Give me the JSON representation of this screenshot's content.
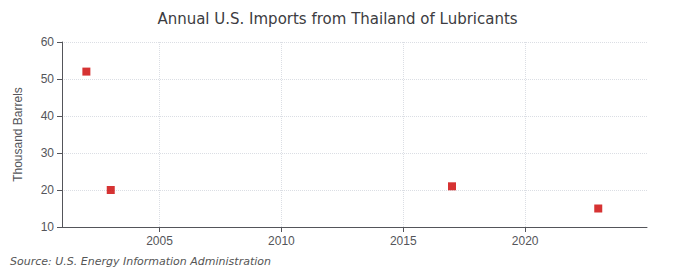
{
  "chart_data": {
    "type": "scatter",
    "title": "Annual U.S. Imports from Thailand of Lubricants",
    "ylabel": "Thousand Barrels",
    "annotation": "Source: U.S. Energy Information Administration",
    "x": [
      2002,
      2003,
      2017,
      2023
    ],
    "values": [
      52,
      20,
      21,
      15
    ],
    "color": "#cc0000",
    "marker": "square",
    "xlim": [
      2001,
      2025
    ],
    "xticks": [
      2005,
      2010,
      2015,
      2020
    ],
    "ylim": [
      10,
      60
    ],
    "yticks": [
      10,
      20,
      30,
      40,
      50,
      60
    ],
    "grid": true
  }
}
